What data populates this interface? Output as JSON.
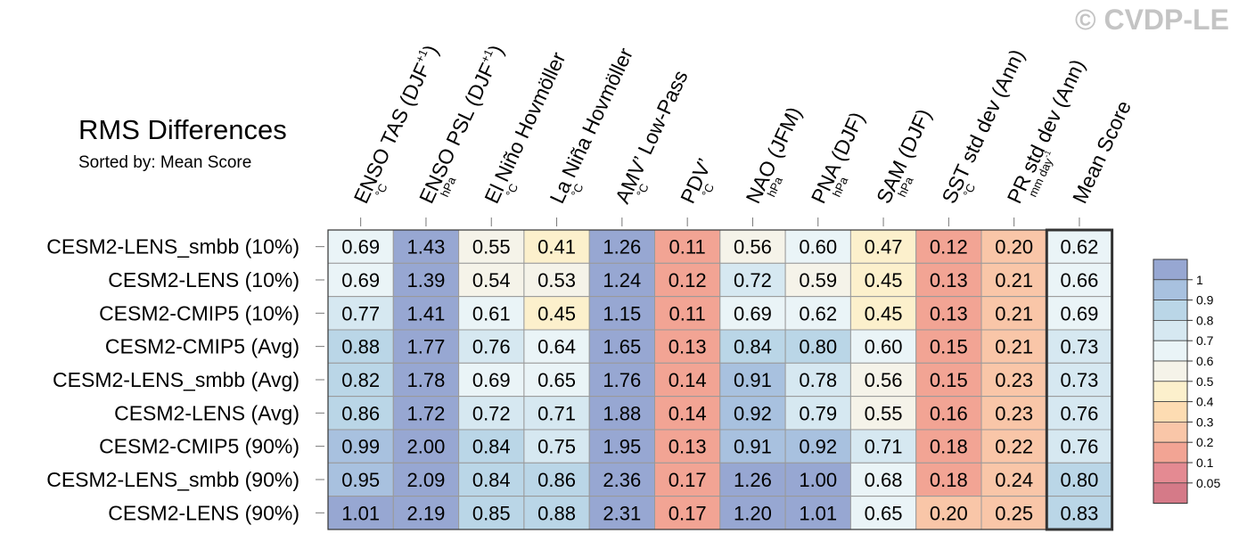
{
  "watermark": "© CVDP-LE",
  "title": "RMS Differences",
  "subtitle": "Sorted by: Mean Score",
  "chart_data": {
    "type": "heatmap",
    "columns": [
      {
        "label": "ENSO TAS (DJF",
        "sup": "+1",
        "close": ")",
        "unit": "°C"
      },
      {
        "label": "ENSO PSL (DJF",
        "sup": "+1",
        "close": ")",
        "unit": "hPa"
      },
      {
        "label": "El Niño Hovmöller",
        "unit": "°C"
      },
      {
        "label": "La Niña Hovmöller",
        "unit": "°C"
      },
      {
        "label": "AMV’ Low-Pass",
        "unit": "°C"
      },
      {
        "label": "PDV’",
        "unit": "°C"
      },
      {
        "label": "NAO (JFM)",
        "unit": "hPa"
      },
      {
        "label": "PNA (DJF)",
        "unit": "hPa"
      },
      {
        "label": "SAM (DJF)",
        "unit": "hPa"
      },
      {
        "label": "SST std dev (Ann)",
        "unit": "°C"
      },
      {
        "label": "PR std dev (Ann)",
        "unit": "mm day",
        "unit_sup": "-1"
      },
      {
        "label": "Mean Score",
        "unit": ""
      }
    ],
    "rows": [
      "CESM2-LENS_smbb (10%)",
      "CESM2-LENS (10%)",
      "CESM2-CMIP5 (10%)",
      "CESM2-CMIP5 (Avg)",
      "CESM2-LENS_smbb (Avg)",
      "CESM2-LENS (Avg)",
      "CESM2-CMIP5 (90%)",
      "CESM2-LENS_smbb (90%)",
      "CESM2-LENS (90%)"
    ],
    "values": [
      [
        "0.69",
        "1.43",
        "0.55",
        "0.41",
        "1.26",
        "0.11",
        "0.56",
        "0.60",
        "0.47",
        "0.12",
        "0.20",
        "0.62"
      ],
      [
        "0.69",
        "1.39",
        "0.54",
        "0.53",
        "1.24",
        "0.12",
        "0.72",
        "0.59",
        "0.45",
        "0.13",
        "0.21",
        "0.66"
      ],
      [
        "0.77",
        "1.41",
        "0.61",
        "0.45",
        "1.15",
        "0.11",
        "0.69",
        "0.62",
        "0.45",
        "0.13",
        "0.21",
        "0.69"
      ],
      [
        "0.88",
        "1.77",
        "0.76",
        "0.64",
        "1.65",
        "0.13",
        "0.84",
        "0.80",
        "0.60",
        "0.15",
        "0.21",
        "0.73"
      ],
      [
        "0.82",
        "1.78",
        "0.69",
        "0.65",
        "1.76",
        "0.14",
        "0.91",
        "0.78",
        "0.56",
        "0.15",
        "0.23",
        "0.73"
      ],
      [
        "0.86",
        "1.72",
        "0.72",
        "0.71",
        "1.88",
        "0.14",
        "0.92",
        "0.79",
        "0.55",
        "0.16",
        "0.23",
        "0.76"
      ],
      [
        "0.99",
        "2.00",
        "0.84",
        "0.75",
        "1.95",
        "0.13",
        "0.91",
        "0.92",
        "0.71",
        "0.18",
        "0.22",
        "0.76"
      ],
      [
        "0.95",
        "2.09",
        "0.84",
        "0.86",
        "2.36",
        "0.17",
        "1.26",
        "1.00",
        "0.68",
        "0.18",
        "0.24",
        "0.80"
      ],
      [
        "1.01",
        "2.19",
        "0.85",
        "0.88",
        "2.31",
        "0.17",
        "1.20",
        "1.01",
        "0.65",
        "0.20",
        "0.25",
        "0.83"
      ]
    ],
    "colorbar": {
      "levels": [
        "1",
        "0.9",
        "0.8",
        "0.7",
        "0.6",
        "0.5",
        "0.4",
        "0.3",
        "0.2",
        "0.1",
        "0.05"
      ],
      "colors": [
        "#97a7d2",
        "#a8c1df",
        "#bad6e7",
        "#d6e8f1",
        "#eaf4f7",
        "#f5f3e9",
        "#fcf0cc",
        "#fddcb2",
        "#f9c6a8",
        "#f2a494",
        "#e48a92",
        "#d57a88"
      ]
    }
  }
}
